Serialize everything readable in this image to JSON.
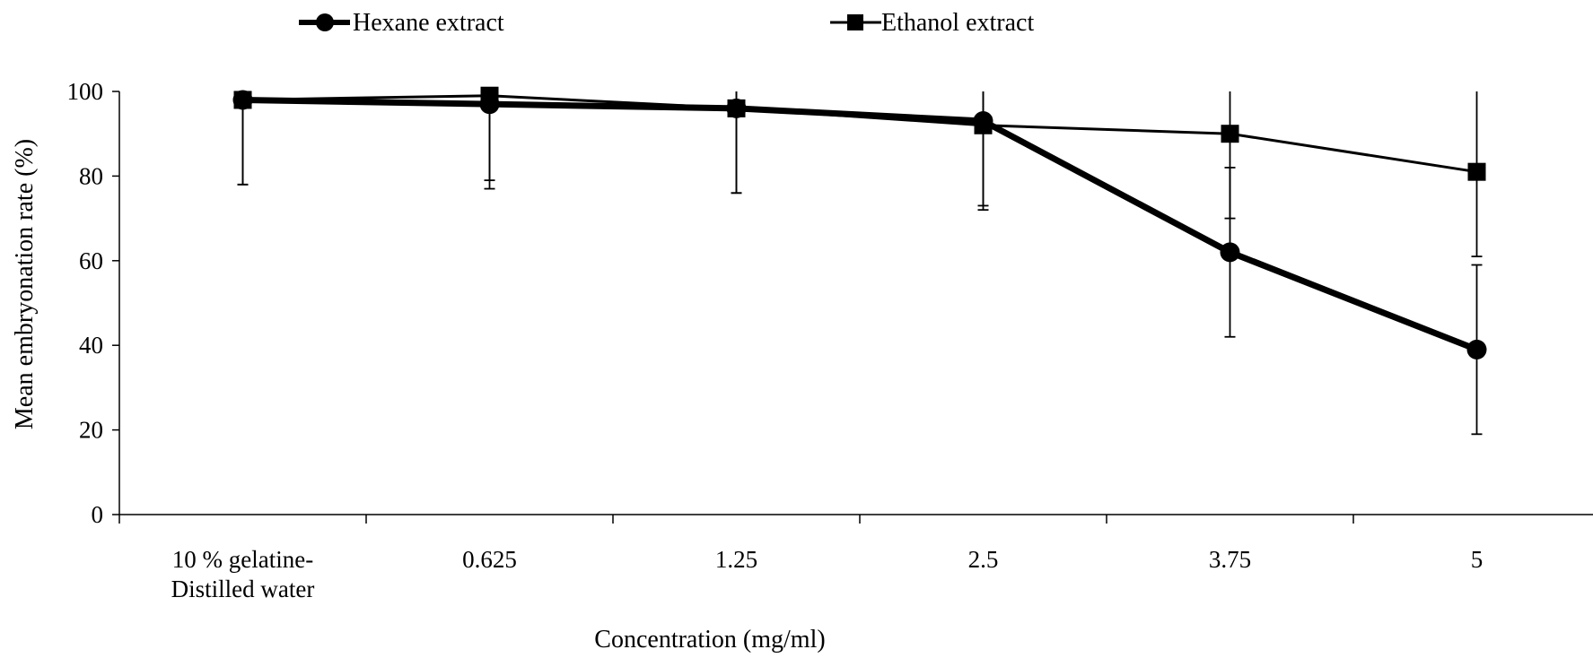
{
  "chart_data": {
    "type": "line",
    "xlabel": "Concentration (mg/ml)",
    "ylabel": "Mean embryonation rate (%)",
    "categories": [
      [
        "10 % gelatine-",
        "Distilled water"
      ],
      [
        "0.625"
      ],
      [
        "1.25"
      ],
      [
        "2.5"
      ],
      [
        "3.75"
      ],
      [
        "5"
      ]
    ],
    "ylim": [
      0,
      100
    ],
    "yticks": [
      0,
      20,
      40,
      60,
      80,
      100
    ],
    "grid": false,
    "legend_position": "top",
    "series": [
      {
        "name": "Hexane extract",
        "marker": "circle",
        "values": [
          98,
          97,
          96,
          93,
          62,
          39
        ],
        "error": [
          20,
          20,
          20,
          20,
          20,
          20
        ],
        "color": "#000000"
      },
      {
        "name": "Ethanol extract",
        "marker": "square",
        "values": [
          98,
          99,
          96,
          92,
          90,
          81
        ],
        "error": [
          20,
          20,
          20,
          20,
          20,
          20
        ],
        "color": "#000000"
      }
    ]
  }
}
